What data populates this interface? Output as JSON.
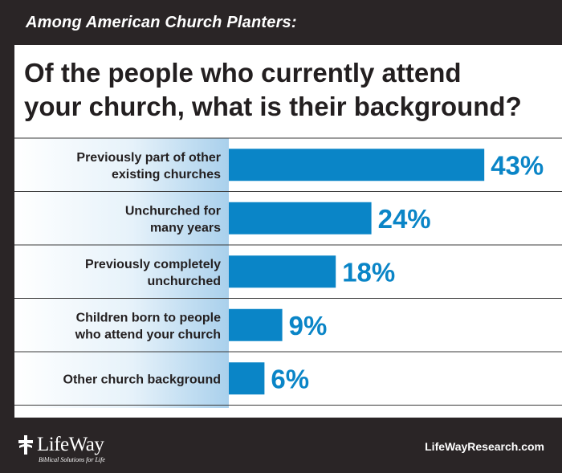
{
  "header": {
    "kicker": "Among American Church Planters:"
  },
  "chart_data": {
    "type": "bar",
    "orientation": "horizontal",
    "title_lines": [
      "Of the people who currently attend",
      "your church, what is their background?"
    ],
    "categories": [
      [
        "Previously part of other",
        "existing churches"
      ],
      [
        "Unchurched for",
        "many years"
      ],
      [
        "Previously completely",
        "unchurched"
      ],
      [
        "Children born to people",
        "who attend your church"
      ],
      [
        "Other church background"
      ]
    ],
    "values": [
      43,
      24,
      18,
      9,
      6
    ],
    "value_labels": [
      "43%",
      "24%",
      "18%",
      "9%",
      "6%"
    ],
    "unit": "%",
    "bar_color": "#0a85c7",
    "label_color": "#0a85c7"
  },
  "footer": {
    "logo_name": "LifeWay",
    "logo_tagline": "Biblical Solutions for Life",
    "site": "LifeWayResearch.com"
  }
}
